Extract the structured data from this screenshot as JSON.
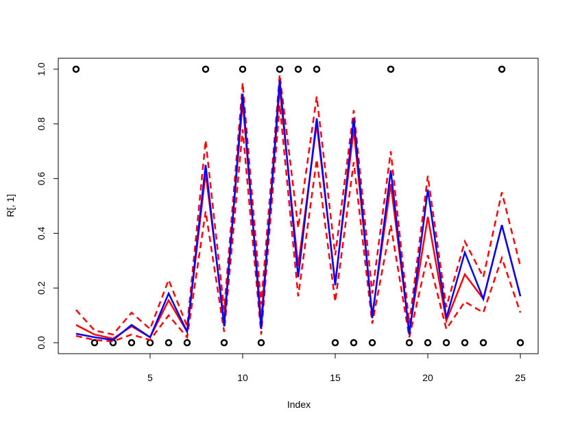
{
  "chart_data": {
    "type": "line",
    "xlabel": "Index",
    "ylabel": "R[, 1]",
    "x": [
      1,
      2,
      3,
      4,
      5,
      6,
      7,
      8,
      9,
      10,
      11,
      12,
      13,
      14,
      15,
      16,
      17,
      18,
      19,
      20,
      21,
      22,
      23,
      24,
      25
    ],
    "xlim": [
      0.04,
      25.96
    ],
    "xticks": [
      5,
      10,
      15,
      20,
      25
    ],
    "ylim": [
      -0.04,
      1.04
    ],
    "yticks": [
      {
        "value": 0,
        "label": "0.0"
      },
      {
        "value": 0.2,
        "label": "0.2"
      },
      {
        "value": 0.4,
        "label": "0.4"
      },
      {
        "value": 0.6,
        "label": "0.6"
      },
      {
        "value": 0.8,
        "label": "0.8"
      },
      {
        "value": 1,
        "label": "1.0"
      }
    ],
    "series": [
      {
        "style": "points",
        "color": "#000000",
        "values": [
          1,
          0,
          0,
          0,
          0,
          0,
          0,
          1,
          0,
          1,
          0,
          1,
          1,
          1,
          0,
          0,
          0,
          1,
          0,
          0,
          0,
          0,
          0,
          1,
          0
        ]
      },
      {
        "style": "solid",
        "color": "#ff0000",
        "values": [
          0.065,
          0.03,
          0.015,
          0.06,
          0.02,
          0.155,
          0.04,
          0.62,
          0.08,
          0.88,
          0.08,
          0.93,
          0.28,
          0.8,
          0.22,
          0.78,
          0.1,
          0.58,
          0.04,
          0.46,
          0.08,
          0.25,
          0.16,
          0.43,
          0.17
        ]
      },
      {
        "style": "dashed",
        "color": "#ff0000",
        "values": [
          0.12,
          0.045,
          0.03,
          0.11,
          0.05,
          0.23,
          0.06,
          0.74,
          0.12,
          0.95,
          0.14,
          0.98,
          0.42,
          0.9,
          0.32,
          0.85,
          0.18,
          0.7,
          0.07,
          0.61,
          0.13,
          0.37,
          0.24,
          0.55,
          0.28
        ]
      },
      {
        "style": "dashed",
        "color": "#ff0000",
        "values": [
          0.025,
          0.01,
          0.005,
          0.03,
          0.01,
          0.1,
          0.02,
          0.48,
          0.04,
          0.78,
          0.03,
          0.87,
          0.17,
          0.67,
          0.15,
          0.66,
          0.07,
          0.43,
          0.02,
          0.32,
          0.05,
          0.15,
          0.11,
          0.31,
          0.11
        ]
      },
      {
        "style": "solid",
        "color": "#0000ff",
        "values": [
          0.033,
          0.02,
          0.01,
          0.065,
          0.02,
          0.18,
          0.04,
          0.65,
          0.06,
          0.91,
          0.05,
          0.96,
          0.24,
          0.82,
          0.21,
          0.82,
          0.09,
          0.63,
          0.03,
          0.56,
          0.09,
          0.33,
          0.16,
          0.43,
          0.17
        ]
      }
    ]
  }
}
